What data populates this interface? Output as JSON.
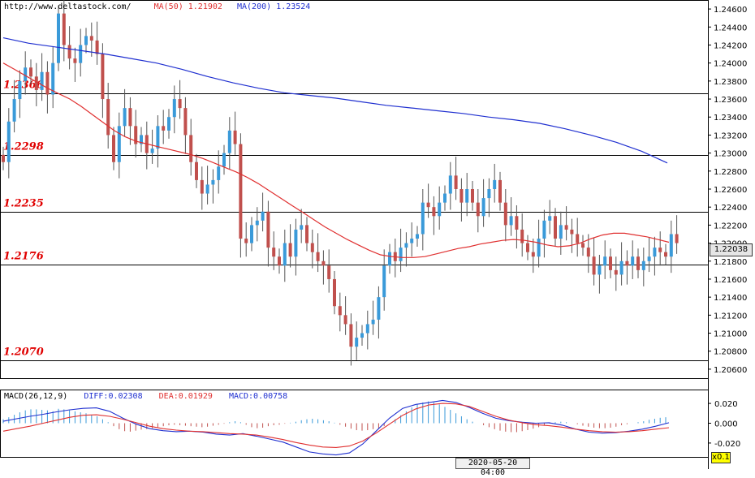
{
  "header": {
    "url": "http://www.deltastock.com/",
    "ma50_label": "MA(50)",
    "ma50_value": "1.21902",
    "ma200_label": "MA(200)",
    "ma200_value": "1.23524"
  },
  "macd_header": {
    "title": "MACD(26,12,9)",
    "diff": "DIFF:0.02308",
    "dea": "DEA:0.01929",
    "macd": "MACD:0.00758"
  },
  "date_label": "2020-05-20 04:00",
  "current_price": "1.22038",
  "zoom_label": "x0.1",
  "colors": {
    "up": "#3a9ad9",
    "down": "#c0504d",
    "ma50": "#e03030",
    "ma200": "#2030d0",
    "level_text": "#e00000"
  },
  "chart_data": [
    {
      "type": "candlestick",
      "ylim": [
        1.205,
        1.247
      ],
      "y_ticks": [
        "1.24600",
        "1.24400",
        "1.24200",
        "1.24000",
        "1.23800",
        "1.23600",
        "1.23400",
        "1.23200",
        "1.23000",
        "1.22800",
        "1.22600",
        "1.22400",
        "1.22200",
        "1.22000",
        "1.21800",
        "1.21600",
        "1.21400",
        "1.21200",
        "1.21000",
        "1.20800",
        "1.20600"
      ],
      "levels": [
        {
          "label": "1.2366",
          "value": 1.2366
        },
        {
          "label": "1.2298",
          "value": 1.2298
        },
        {
          "label": "1.2235",
          "value": 1.2235
        },
        {
          "label": "1.2176",
          "value": 1.2176
        },
        {
          "label": "1.2070",
          "value": 1.207
        }
      ],
      "close": [
        1.229,
        1.2335,
        1.236,
        1.238,
        1.2395,
        1.2385,
        1.237,
        1.239,
        1.2365,
        1.24,
        1.2455,
        1.242,
        1.2405,
        1.24,
        1.242,
        1.243,
        1.2425,
        1.241,
        1.236,
        1.232,
        1.229,
        1.233,
        1.235,
        1.233,
        1.231,
        1.232,
        1.23,
        1.2305,
        1.233,
        1.2325,
        1.234,
        1.236,
        1.235,
        1.232,
        1.229,
        1.227,
        1.2255,
        1.2265,
        1.227,
        1.2285,
        1.23,
        1.2325,
        1.231,
        1.2205,
        1.22,
        1.222,
        1.2225,
        1.2235,
        1.2195,
        1.2185,
        1.2175,
        1.22,
        1.2185,
        1.2215,
        1.222,
        1.22,
        1.219,
        1.218,
        1.2175,
        1.216,
        1.213,
        1.212,
        1.211,
        1.2085,
        1.2095,
        1.21,
        1.211,
        1.2115,
        1.214,
        1.2175,
        1.219,
        1.218,
        1.2195,
        1.22,
        1.2205,
        1.221,
        1.2245,
        1.224,
        1.223,
        1.2245,
        1.2255,
        1.2275,
        1.226,
        1.2245,
        1.226,
        1.2245,
        1.223,
        1.225,
        1.226,
        1.227,
        1.2245,
        1.222,
        1.223,
        1.2215,
        1.22,
        1.219,
        1.2185,
        1.2205,
        1.2225,
        1.223,
        1.2205,
        1.222,
        1.2215,
        1.221,
        1.22,
        1.2195,
        1.2185,
        1.2165,
        1.2175,
        1.2185,
        1.217,
        1.2165,
        1.218,
        1.2175,
        1.2185,
        1.217,
        1.218,
        1.2185,
        1.2195,
        1.219,
        1.2185,
        1.221,
        1.22
      ],
      "series": [
        {
          "name": "MA(50)",
          "values": [
            1.24,
            1.2393,
            1.2386,
            1.2379,
            1.2372,
            1.2366,
            1.236,
            1.2352,
            1.2343,
            1.2334,
            1.2325,
            1.2318,
            1.2313,
            1.231,
            1.2307,
            1.2304,
            1.2301,
            1.2298,
            1.2294,
            1.2289,
            1.2284,
            1.2279,
            1.2273,
            1.2266,
            1.2258,
            1.225,
            1.2242,
            1.2234,
            1.2226,
            1.2218,
            1.2211,
            1.2204,
            1.2198,
            1.2192,
            1.2187,
            1.2185,
            1.2184,
            1.2184,
            1.2185,
            1.2188,
            1.2191,
            1.2194,
            1.2196,
            1.2199,
            1.2201,
            1.2203,
            1.2204,
            1.2203,
            1.2201,
            1.2198,
            1.2196,
            1.2197,
            1.22,
            1.2205,
            1.2209,
            1.2211,
            1.2211,
            1.2209,
            1.2207,
            1.2204,
            1.2201
          ]
        },
        {
          "name": "MA(200)",
          "values": [
            1.2428,
            1.2422,
            1.2418,
            1.2414,
            1.241,
            1.2405,
            1.24,
            1.2393,
            1.2385,
            1.2378,
            1.2372,
            1.2367,
            1.2364,
            1.2361,
            1.2357,
            1.2353,
            1.235,
            1.2347,
            1.2344,
            1.234,
            1.2337,
            1.2333,
            1.2327,
            1.232,
            1.2312,
            1.2302,
            1.2289
          ]
        }
      ]
    },
    {
      "type": "bar",
      "ylim": [
        -0.034,
        0.034
      ],
      "y_ticks": [
        "0.020",
        "0.000",
        "-0.020"
      ],
      "macd": [
        0.004,
        0.006,
        0.0085,
        0.011,
        0.013,
        0.014,
        0.014,
        0.0135,
        0.013,
        0.012,
        0.0145,
        0.014,
        0.013,
        0.012,
        0.011,
        0.01,
        0.0085,
        0.007,
        0.004,
        0.001,
        -0.003,
        -0.006,
        -0.008,
        -0.0085,
        -0.0075,
        -0.0065,
        -0.006,
        -0.005,
        -0.004,
        -0.003,
        -0.002,
        -0.0015,
        -0.002,
        -0.0025,
        -0.003,
        -0.0035,
        -0.004,
        -0.0035,
        -0.0025,
        -0.0015,
        -0.0005,
        0.001,
        0.002,
        0.001,
        -0.0015,
        -0.004,
        -0.005,
        -0.0045,
        -0.003,
        -0.002,
        -0.0015,
        -0.0005,
        0.0005,
        0.0015,
        0.003,
        0.004,
        0.0045,
        0.004,
        0.003,
        0.002,
        0.0005,
        -0.0015,
        -0.0035,
        -0.0055,
        -0.007,
        -0.0075,
        -0.007,
        -0.006,
        -0.005,
        -0.003,
        0.0,
        0.004,
        0.008,
        0.012,
        0.016,
        0.019,
        0.021,
        0.022,
        0.021,
        0.019,
        0.0165,
        0.0135,
        0.01,
        0.007,
        0.004,
        0.0015,
        0.0,
        -0.002,
        -0.004,
        -0.006,
        -0.0075,
        -0.0085,
        -0.009,
        -0.009,
        -0.008,
        -0.007,
        -0.0055,
        -0.004,
        -0.002,
        -0.0005,
        0.001,
        0.0015,
        0.001,
        0.0,
        -0.001,
        -0.0025,
        -0.0035,
        -0.0045,
        -0.005,
        -0.005,
        -0.0045,
        -0.0035,
        -0.002,
        -0.001,
        0.0,
        0.001,
        0.002,
        0.0035,
        0.0045,
        0.0055,
        0.006
      ],
      "series": [
        {
          "name": "DIFF",
          "values": [
            0.002,
            0.0045,
            0.007,
            0.009,
            0.0115,
            0.0135,
            0.015,
            0.0155,
            0.012,
            0.005,
            -0.001,
            -0.0055,
            -0.0075,
            -0.0085,
            -0.008,
            -0.009,
            -0.011,
            -0.012,
            -0.0105,
            -0.013,
            -0.016,
            -0.019,
            -0.024,
            -0.029,
            -0.031,
            -0.032,
            -0.03,
            -0.021,
            -0.008,
            0.005,
            0.015,
            0.019,
            0.021,
            0.023,
            0.021,
            0.016,
            0.01,
            0.005,
            0.0025,
            0.001,
            0.0,
            0.0005,
            -0.002,
            -0.006,
            -0.009,
            -0.01,
            -0.0095,
            -0.008,
            -0.006,
            -0.003,
            0.0005
          ]
        },
        {
          "name": "DEA",
          "values": [
            -0.008,
            -0.0055,
            -0.003,
            0.0,
            0.003,
            0.006,
            0.008,
            0.0085,
            0.007,
            0.004,
            0.0005,
            -0.003,
            -0.0055,
            -0.007,
            -0.008,
            -0.0085,
            -0.0095,
            -0.0105,
            -0.011,
            -0.012,
            -0.014,
            -0.0165,
            -0.0195,
            -0.022,
            -0.024,
            -0.0245,
            -0.023,
            -0.018,
            -0.01,
            -0.001,
            0.008,
            0.0145,
            0.0185,
            0.02,
            0.0195,
            0.017,
            0.012,
            0.007,
            0.003,
            0.0005,
            -0.0015,
            -0.0025,
            -0.004,
            -0.006,
            -0.0075,
            -0.0085,
            -0.009,
            -0.0085,
            -0.0075,
            -0.006,
            -0.0045
          ]
        }
      ]
    }
  ]
}
